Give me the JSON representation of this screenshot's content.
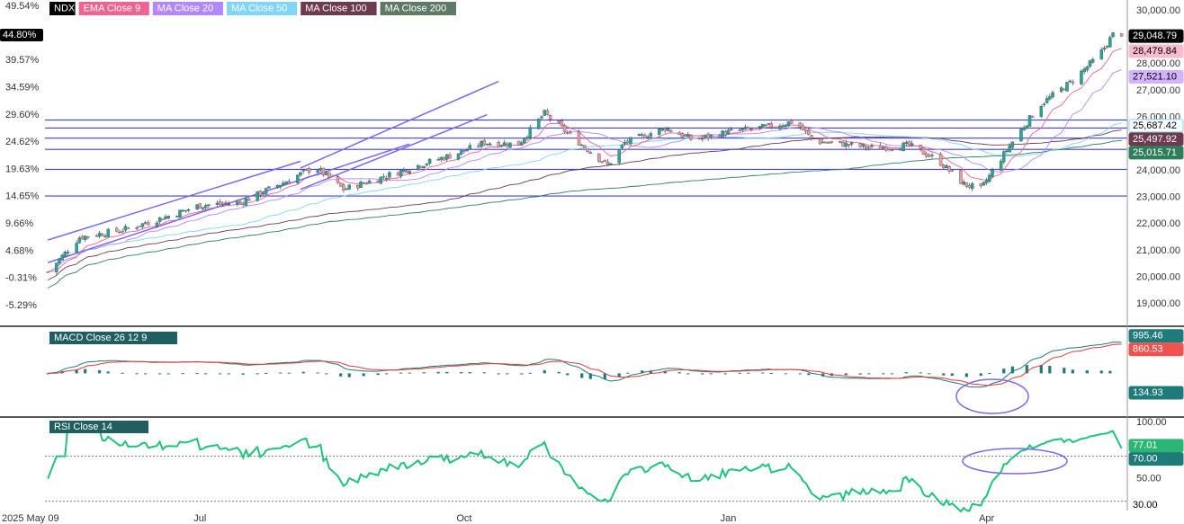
{
  "chart_data": [
    {
      "type": "candlestick",
      "symbol": "NDX",
      "legend": [
        {
          "label": "NDX",
          "color": "#000000",
          "text": "#ffffff"
        },
        {
          "label": "EMA Close 9",
          "color": "#f06292",
          "text": "#ffffff"
        },
        {
          "label": "MA Close 20",
          "color": "#b388ff",
          "text": "#ffffff"
        },
        {
          "label": "MA Close 50",
          "color": "#81d4fa",
          "text": "#ffffff"
        },
        {
          "label": "MA Close 100",
          "color": "#6d3b4f",
          "text": "#ffffff"
        },
        {
          "label": "MA Close 200",
          "color": "#5e7a66",
          "text": "#ffffff"
        }
      ],
      "price_axis_ticks": [
        "30,000.00",
        "29,000.00",
        "28,000.00",
        "27,000.00",
        "26,000.00",
        "25,000.00",
        "24,000.00",
        "23,000.00",
        "22,000.00",
        "21,000.00",
        "20,000.00",
        "19,000.00"
      ],
      "percent_axis_ticks": [
        "49.54%",
        "39.57%",
        "34.59%",
        "29.60%",
        "24.62%",
        "19.63%",
        "14.65%",
        "9.66%",
        "4.68%",
        "-0.31%",
        "-5.29%"
      ],
      "percent_marker": {
        "label": "44.80%"
      },
      "price_markers": [
        {
          "label": "29,048.79",
          "bg": "#000000",
          "fg": "#ffffff",
          "value": 29048.79
        },
        {
          "label": "28,479.84",
          "bg": "#f8bbd0",
          "fg": "#000000",
          "value": 28479.84
        },
        {
          "label": "27,521.10",
          "bg": "#d1b3ff",
          "fg": "#000000",
          "value": 27521.1
        },
        {
          "label": "25,687.42",
          "bg": "#ffffff",
          "fg": "#000000",
          "value": 25687.42,
          "border": "#81d4fa"
        },
        {
          "label": "25,497.92",
          "bg": "#6d3b4f",
          "fg": "#ffffff",
          "value": 25497.92
        },
        {
          "label": "25,015.71",
          "bg": "#2e7d5b",
          "fg": "#ffffff",
          "value": 25015.71
        }
      ],
      "ylim": [
        18400,
        30200
      ],
      "horizontal_levels": [
        25900,
        25600,
        25220,
        24800,
        24050,
        23050
      ],
      "trendlines": [
        {
          "from": [
            "2025-05-09",
            21400
          ],
          "to": [
            "2025-08-05",
            24350
          ]
        },
        {
          "from": [
            "2025-05-09",
            20550
          ],
          "to": [
            "2025-09-12",
            25000
          ]
        },
        {
          "from": [
            "2025-08-05",
            24100
          ],
          "to": [
            "2025-10-13",
            27350
          ]
        },
        {
          "from": [
            "2025-08-05",
            23300
          ],
          "to": [
            "2025-10-09",
            26100
          ]
        }
      ],
      "waypoints": [
        [
          "2025-05-09",
          20200
        ],
        [
          "2025-05-20",
          21500
        ],
        [
          "2025-06-05",
          21800
        ],
        [
          "2025-06-20",
          22300
        ],
        [
          "2025-07-01",
          22700
        ],
        [
          "2025-07-15",
          22800
        ],
        [
          "2025-07-31",
          23600
        ],
        [
          "2025-08-10",
          24150
        ],
        [
          "2025-08-20",
          23300
        ],
        [
          "2025-09-01",
          23700
        ],
        [
          "2025-09-15",
          24200
        ],
        [
          "2025-09-30",
          24700
        ],
        [
          "2025-10-08",
          25050
        ],
        [
          "2025-10-20",
          25000
        ],
        [
          "2025-10-29",
          26150
        ],
        [
          "2025-11-05",
          25500
        ],
        [
          "2025-11-20",
          24200
        ],
        [
          "2025-11-26",
          25050
        ],
        [
          "2025-12-10",
          25600
        ],
        [
          "2025-12-20",
          25150
        ],
        [
          "2026-01-01",
          25450
        ],
        [
          "2026-01-15",
          25650
        ],
        [
          "2026-01-24",
          25850
        ],
        [
          "2026-01-31",
          25100
        ],
        [
          "2026-02-10",
          25000
        ],
        [
          "2026-02-20",
          24850
        ],
        [
          "2026-03-05",
          24950
        ],
        [
          "2026-03-15",
          24400
        ],
        [
          "2026-03-24",
          23500
        ],
        [
          "2026-03-30",
          23300
        ],
        [
          "2026-04-05",
          24300
        ],
        [
          "2026-04-12",
          25400
        ],
        [
          "2026-04-20",
          26500
        ],
        [
          "2026-04-30",
          27300
        ],
        [
          "2026-05-10",
          28300
        ],
        [
          "2026-05-15",
          29100
        ],
        [
          "2026-05-18",
          29048.79
        ]
      ],
      "x_ticks": [
        {
          "label": "2025 May 09",
          "date": "2025-05-09"
        },
        {
          "label": "Jul",
          "date": "2025-07-01"
        },
        {
          "label": "Oct",
          "date": "2025-10-01"
        },
        {
          "label": "Jan",
          "date": "2026-01-01"
        },
        {
          "label": "Apr",
          "date": "2026-04-01"
        }
      ],
      "xlim": [
        "2025-05-08",
        "2026-05-20"
      ]
    },
    {
      "type": "line+histogram",
      "title": "MACD  Close 26 12 9",
      "ylim": [
        -1100,
        1200
      ],
      "markers": [
        {
          "label": "995.46",
          "bg": "#1f7a7a",
          "fg": "#ffffff",
          "value": 995.46
        },
        {
          "label": "860.53",
          "bg": "#ef5350",
          "fg": "#ffffff",
          "value": 860.53
        },
        {
          "label": "134.93",
          "bg": "#1f7a7a",
          "fg": "#ffffff",
          "value": 134.93
        }
      ]
    },
    {
      "type": "line",
      "title": "RSI  Close 14",
      "ylim": [
        25,
        100
      ],
      "y_ticks": [
        "100.00",
        "50.00"
      ],
      "levels": [
        70,
        30
      ],
      "markers": [
        {
          "label": "77.01",
          "bg": "#2bb673",
          "fg": "#ffffff",
          "value": 77.01
        },
        {
          "label": "70.00",
          "bg": "#1f7a7a",
          "fg": "#ffffff",
          "value": 70
        },
        {
          "label": "30.00",
          "bg": "#ffffff",
          "fg": "#000000",
          "value": 30
        }
      ]
    }
  ],
  "colors": {
    "up": "#26a69a",
    "down": "#ef9a9a",
    "level": "#3f3ff0",
    "trend": "#7b68ee",
    "rsi": "#1ec37a",
    "macd": "#1f7a7a",
    "signal": "#e53935"
  }
}
